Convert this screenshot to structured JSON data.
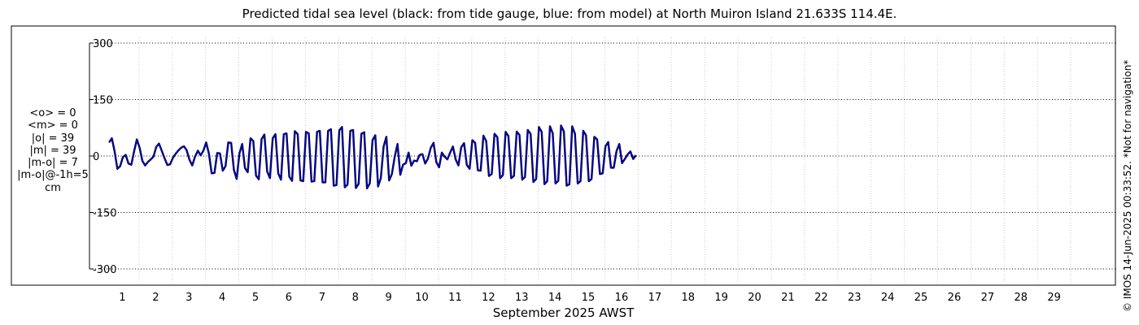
{
  "chart_data": {
    "type": "line",
    "title": "Predicted tidal sea level (black: from tide gauge, blue: from model) at North Muiron Island 21.633S 114.4E.",
    "xlabel": "September 2025 AWST",
    "ylabel": "",
    "units": "cm",
    "xlim": [
      0,
      30.4
    ],
    "ylim": [
      -320,
      320
    ],
    "yticks": [
      300,
      150,
      0,
      -150,
      -300
    ],
    "ytick_labels": [
      "300",
      "150",
      "0",
      "-150",
      "-300"
    ],
    "xticks": [
      1,
      2,
      3,
      4,
      5,
      6,
      7,
      8,
      9,
      10,
      11,
      12,
      13,
      14,
      15,
      16,
      17,
      18,
      19,
      20,
      21,
      22,
      23,
      24,
      25,
      26,
      27,
      28,
      29
    ],
    "xtick_labels": [
      "1",
      "2",
      "3",
      "4",
      "5",
      "6",
      "7",
      "8",
      "9",
      "10",
      "11",
      "12",
      "13",
      "14",
      "15",
      "16",
      "17",
      "18",
      "19",
      "20",
      "21",
      "22",
      "23",
      "24",
      "25",
      "26",
      "27",
      "28",
      "29"
    ],
    "grid": true,
    "series": [
      {
        "name": "tide gauge",
        "color": "#000000",
        "sampling": "12 points per day from day 0.1",
        "values": [
          36,
          47,
          12,
          -34,
          -27,
          -3,
          3,
          -20,
          -23,
          12,
          44,
          22,
          -13,
          -25,
          -16,
          -9,
          -2,
          24,
          33,
          14,
          -6,
          -24,
          -22,
          -5,
          6,
          15,
          22,
          26,
          15,
          -10,
          -25,
          -2,
          14,
          2,
          14,
          36,
          6,
          -46,
          -45,
          8,
          7,
          -39,
          -27,
          36,
          35,
          -37,
          -61,
          7,
          32,
          -32,
          -43,
          47,
          40,
          -52,
          -62,
          45,
          57,
          -41,
          -59,
          47,
          58,
          -46,
          -63,
          58,
          60,
          -55,
          -66,
          66,
          58,
          -65,
          -67,
          64,
          60,
          -68,
          -67,
          64,
          67,
          -70,
          -70,
          67,
          71,
          -79,
          -77,
          68,
          77,
          -83,
          -76,
          67,
          69,
          -85,
          -74,
          59,
          63,
          -86,
          -73,
          42,
          55,
          -81,
          -59,
          25,
          51,
          -65,
          -48,
          -3,
          32,
          -50,
          -23,
          -19,
          9,
          -26,
          -12,
          -14,
          3,
          5,
          -20,
          -7,
          22,
          35,
          -16,
          -30,
          9,
          -2,
          -9,
          9,
          25,
          -9,
          -25,
          23,
          34,
          -24,
          -34,
          42,
          35,
          -38,
          -39,
          54,
          40,
          -53,
          -48,
          59,
          50,
          -59,
          -51,
          64,
          53,
          -59,
          -53,
          65,
          56,
          -63,
          -56,
          69,
          59,
          -69,
          -61,
          77,
          64,
          -75,
          -67,
          79,
          60,
          -73,
          -66,
          81,
          65,
          -79,
          -75,
          79,
          59,
          -73,
          -67,
          67,
          55,
          -67,
          -61,
          51,
          44,
          -48,
          -46,
          26,
          37,
          -31,
          -31,
          13,
          32,
          -19,
          -8,
          4,
          12,
          -8,
          2
        ],
        "note": "Digitised approximation of the plotted curve"
      },
      {
        "name": "model",
        "color": "#0000cc",
        "sampling": "12 points per day from day 0.1",
        "values": [
          36,
          47,
          12,
          -34,
          -27,
          -3,
          3,
          -20,
          -23,
          12,
          44,
          22,
          -13,
          -25,
          -16,
          -9,
          -2,
          24,
          33,
          14,
          -6,
          -24,
          -22,
          -5,
          6,
          15,
          22,
          26,
          15,
          -10,
          -25,
          -2,
          14,
          2,
          14,
          36,
          6,
          -46,
          -45,
          8,
          7,
          -39,
          -27,
          36,
          35,
          -37,
          -61,
          7,
          32,
          -32,
          -43,
          47,
          40,
          -52,
          -62,
          45,
          57,
          -41,
          -59,
          47,
          58,
          -46,
          -63,
          58,
          60,
          -55,
          -66,
          66,
          58,
          -65,
          -67,
          64,
          60,
          -68,
          -67,
          64,
          67,
          -70,
          -70,
          67,
          71,
          -79,
          -77,
          68,
          77,
          -83,
          -76,
          67,
          69,
          -85,
          -74,
          59,
          63,
          -86,
          -73,
          42,
          55,
          -81,
          -59,
          25,
          51,
          -65,
          -48,
          -3,
          32,
          -50,
          -23,
          -19,
          9,
          -26,
          -12,
          -14,
          3,
          5,
          -20,
          -7,
          22,
          35,
          -16,
          -30,
          9,
          -2,
          -9,
          9,
          25,
          -9,
          -25,
          23,
          34,
          -24,
          -34,
          42,
          35,
          -38,
          -39,
          54,
          40,
          -53,
          -48,
          59,
          50,
          -59,
          -51,
          64,
          53,
          -59,
          -53,
          65,
          56,
          -63,
          -56,
          69,
          59,
          -69,
          -61,
          77,
          64,
          -75,
          -67,
          79,
          60,
          -73,
          -66,
          81,
          65,
          -79,
          -75,
          79,
          59,
          -73,
          -67,
          67,
          55,
          -67,
          -61,
          51,
          44,
          -48,
          -46,
          26,
          37,
          -31,
          -31,
          13,
          32,
          -19,
          -8,
          4,
          12,
          -8,
          2
        ],
        "note": "Digitised approximation of the plotted curve"
      }
    ],
    "annotations": {
      "mean_obs": "<o> = 0",
      "mean_model": "<m> = 0",
      "abs_obs": "|o| = 39",
      "abs_model": "|m| = 39",
      "abs_diff": "|m-o| = 7",
      "abs_diff_lag": "|m-o|@-1h=5",
      "unit": "cm"
    },
    "credit": "© IMOS 14-Jun-2025 00:33:52. *Not for navigation*"
  },
  "colors": {
    "gauge": "#000000",
    "model": "#0000cc",
    "grid_h": "#000000",
    "grid_v": "#c8cbe0"
  }
}
